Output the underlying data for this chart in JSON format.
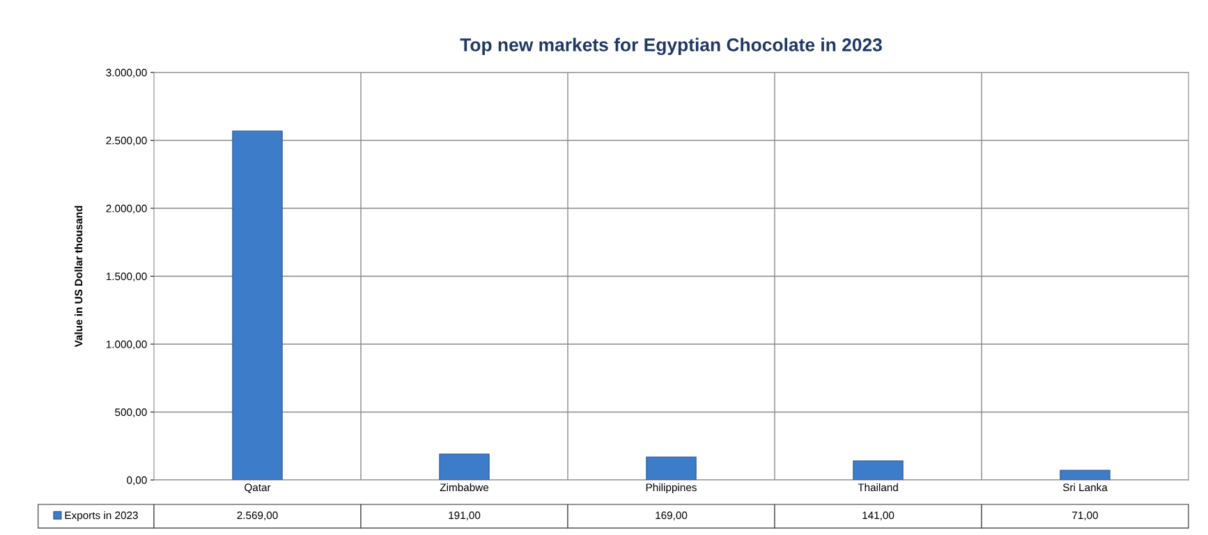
{
  "chart_data": {
    "type": "bar",
    "title": "Top new markets for Egyptian Chocolate in 2023",
    "ylabel": "Value in US Dollar thousand",
    "categories": [
      "Qatar",
      "Zimbabwe",
      "Philippines",
      "Thailand",
      "Sri Lanka"
    ],
    "series": [
      {
        "name": "Exports in 2023",
        "color": "#3d7cc9",
        "values": [
          2569,
          191,
          169,
          141,
          71
        ],
        "value_labels": [
          "2.569,00",
          "191,00",
          "169,00",
          "141,00",
          "71,00"
        ]
      }
    ],
    "ylim": [
      0,
      3000
    ],
    "yticks": [
      {
        "value": 0,
        "label": "0,00"
      },
      {
        "value": 500,
        "label": "500,00"
      },
      {
        "value": 1000,
        "label": "1.000,00"
      },
      {
        "value": 1500,
        "label": "1.500,00"
      },
      {
        "value": 2000,
        "label": "2.000,00"
      },
      {
        "value": 2500,
        "label": "2.500,00"
      },
      {
        "value": 3000,
        "label": "3.000,00"
      }
    ],
    "grid": true,
    "legend": "bottom left"
  }
}
